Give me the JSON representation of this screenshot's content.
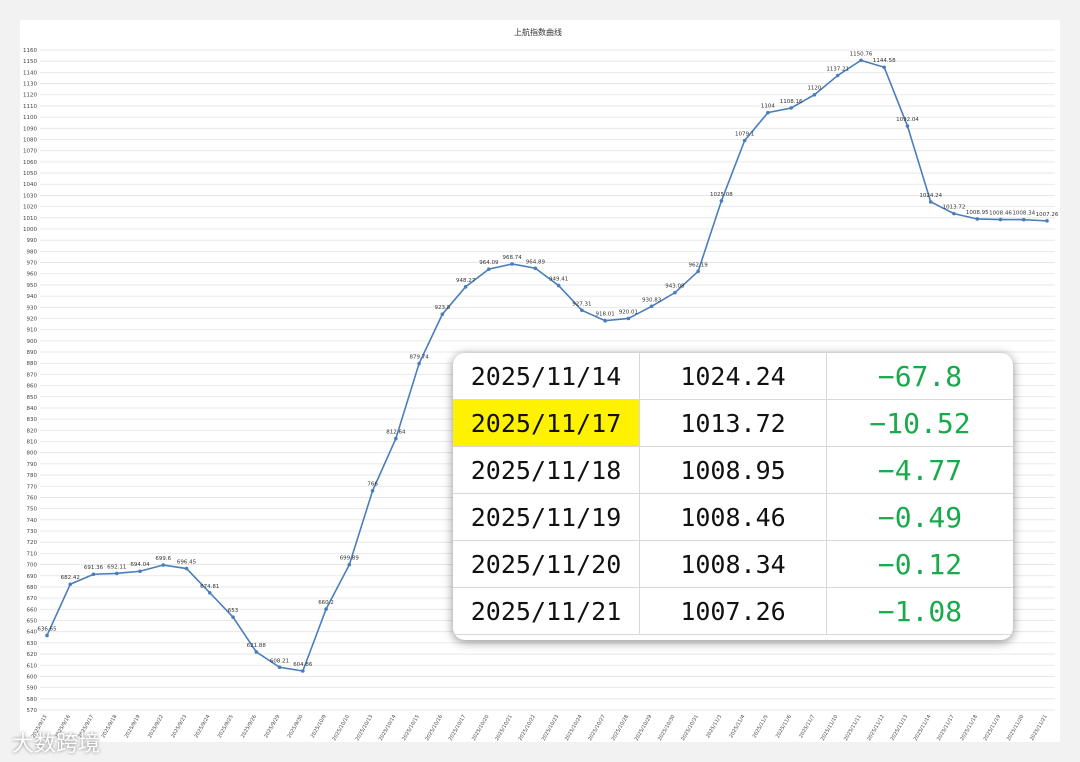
{
  "chart_data": {
    "type": "line",
    "title": "上航指数曲线",
    "categories": [
      "2025/9/15",
      "2025/9/16",
      "2025/9/17",
      "2025/9/18",
      "2025/9/19",
      "2025/9/22",
      "2025/9/23",
      "2025/9/24",
      "2025/9/25",
      "2025/9/26",
      "2025/9/29",
      "2025/9/30",
      "2025/10/9",
      "2025/10/10",
      "2025/10/13",
      "2025/10/14",
      "2025/10/15",
      "2025/10/16",
      "2025/10/17",
      "2025/10/20",
      "2025/10/21",
      "2025/10/22",
      "2025/10/23",
      "2025/10/24",
      "2025/10/27",
      "2025/10/28",
      "2025/10/29",
      "2025/10/30",
      "2025/10/31",
      "2025/11/3",
      "2025/11/4",
      "2025/11/5",
      "2025/11/6",
      "2025/11/7",
      "2025/11/10",
      "2025/11/11",
      "2025/11/12",
      "2025/11/13",
      "2025/11/14",
      "2025/11/17",
      "2025/11/18",
      "2025/11/19",
      "2025/11/20",
      "2025/11/21"
    ],
    "series": [
      {
        "name": "上航指数",
        "color": "#4a7ebb",
        "values": [
          636.65,
          682.42,
          691.36,
          692.11,
          694.04,
          699.6,
          696.45,
          674.81,
          653,
          621.88,
          608.21,
          604.86,
          660.2,
          699.89,
          766,
          812.64,
          879.74,
          923.8,
          948.27,
          964.09,
          968.74,
          964.89,
          949.41,
          927.31,
          918.01,
          920.01,
          930.83,
          943.08,
          962.19,
          1025.08,
          1079.1,
          1104,
          1108.16,
          1120,
          1137.21,
          1150.76,
          1144.58,
          1092.04,
          1024.24,
          1013.72,
          1008.95,
          1008.46,
          1008.34,
          1007.26
        ]
      }
    ],
    "ylim": [
      570,
      1160
    ],
    "yticks": [
      570,
      580,
      590,
      600,
      610,
      620,
      630,
      640,
      650,
      660,
      670,
      680,
      690,
      700,
      710,
      720,
      730,
      740,
      750,
      760,
      770,
      780,
      790,
      800,
      810,
      820,
      830,
      840,
      850,
      860,
      870,
      880,
      890,
      900,
      910,
      920,
      930,
      940,
      950,
      960,
      970,
      980,
      990,
      1000,
      1010,
      1020,
      1030,
      1040,
      1050,
      1060,
      1070,
      1080,
      1090,
      1100,
      1110,
      1120,
      1130,
      1140,
      1150,
      1160
    ],
    "grid": true
  },
  "table": {
    "highlight_row": 1,
    "rows": [
      [
        "2025/11/14",
        "1024.24",
        "−67.8"
      ],
      [
        "2025/11/17",
        "1013.72",
        "−10.52"
      ],
      [
        "2025/11/18",
        "1008.95",
        "−4.77"
      ],
      [
        "2025/11/19",
        "1008.46",
        "−0.49"
      ],
      [
        "2025/11/20",
        "1008.34",
        "−0.12"
      ],
      [
        "2025/11/21",
        "1007.26",
        "−1.08"
      ]
    ]
  },
  "watermark": "大数跨境"
}
